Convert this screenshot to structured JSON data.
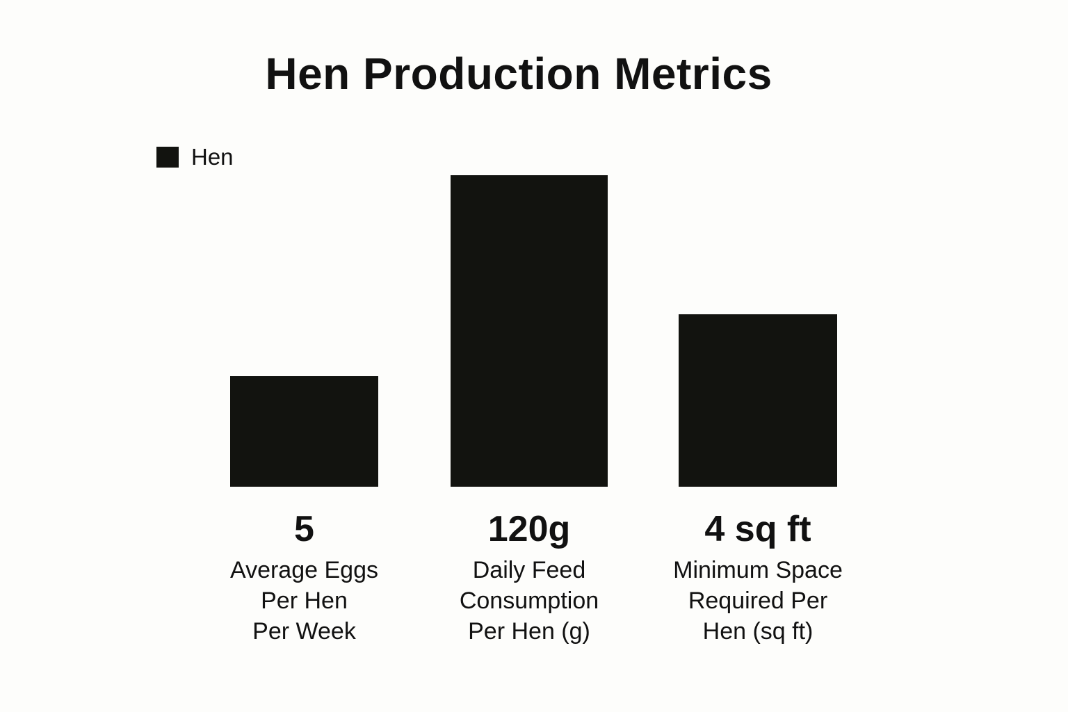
{
  "colors": {
    "bar": "#12130f",
    "background": "#fdfdfb",
    "text": "#111111"
  },
  "chart_data": {
    "type": "bar",
    "title": "Hen Production Metrics",
    "legend": {
      "position": "top-left",
      "entries": [
        "Hen"
      ]
    },
    "grid": false,
    "axes_visible": false,
    "categories": [
      "Average Eggs Per Hen Per Week",
      "Daily Feed Consumption Per Hen (g)",
      "Minimum Space Required Per Hen (sq ft)"
    ],
    "category_lines": [
      [
        "Average Eggs",
        "Per Hen",
        "Per Week"
      ],
      [
        "Daily Feed",
        "Consumption",
        "Per Hen (g)"
      ],
      [
        "Minimum Space",
        "Required Per",
        "Hen (sq ft)"
      ]
    ],
    "series": [
      {
        "name": "Hen",
        "values": [
          5,
          120,
          4
        ]
      }
    ],
    "data_labels": [
      "5",
      "120g",
      "4 sq ft"
    ],
    "displayed_relative_heights": [
      0.356,
      1.0,
      0.553
    ]
  }
}
